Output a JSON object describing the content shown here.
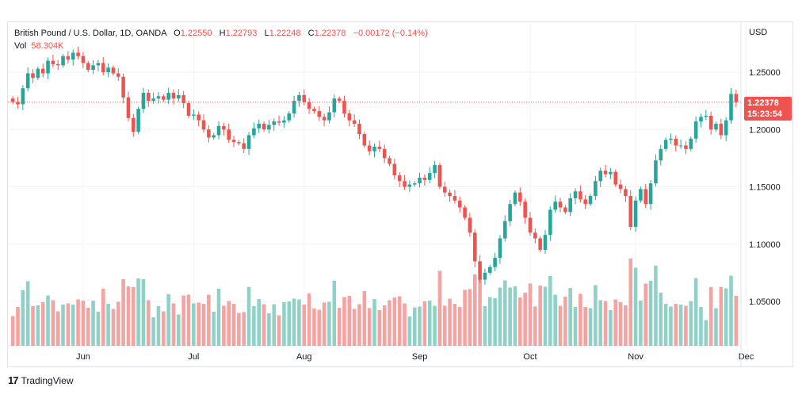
{
  "header": {
    "symbol": "British Pound / U.S. Dollar, 1D, OANDA",
    "open_label": "O",
    "open": "1.22550",
    "high_label": "H",
    "high": "1.22793",
    "low_label": "L",
    "low": "1.22248",
    "close_label": "C",
    "close": "1.22378",
    "change": "−0.00172 (−0.14%)",
    "vol_label": "Vol",
    "vol": "58.304K"
  },
  "currency": "USD",
  "last_price": "1.22378",
  "countdown": "15:23:54",
  "brand": "TradingView",
  "colors": {
    "up": "#26a69a",
    "down": "#ef5350",
    "vol_up": "#8fd1c7",
    "vol_down": "#f5a3a0",
    "grid": "#f0f3fa"
  },
  "chart_data": {
    "type": "candlestick",
    "title": "British Pound / U.S. Dollar, 1D, OANDA",
    "ylim": [
      1.02,
      1.27
    ],
    "y_ticks": [
      1.05,
      1.1,
      1.15,
      1.2,
      1.25
    ],
    "y_tick_labels": [
      "1.05000",
      "1.10000",
      "1.15000",
      "1.20000",
      "1.25000"
    ],
    "x_tick_labels": [
      {
        "label": "Jun",
        "index": 14
      },
      {
        "label": "Jul",
        "index": 36
      },
      {
        "label": "Aug",
        "index": 58
      },
      {
        "label": "Sep",
        "index": 81
      },
      {
        "label": "Oct",
        "index": 103
      },
      {
        "label": "Nov",
        "index": 124
      },
      {
        "label": "Dec",
        "index": 146
      }
    ],
    "series": [
      {
        "close": [
          1.224,
          1.222,
          1.236,
          1.249,
          1.245,
          1.253,
          1.249,
          1.26,
          1.257,
          1.256,
          1.264,
          1.261,
          1.267,
          1.264,
          1.258,
          1.252,
          1.256,
          1.258,
          1.25,
          1.254,
          1.249,
          1.246,
          1.228,
          1.21,
          1.198,
          1.218,
          1.232,
          1.225,
          1.227,
          1.229,
          1.226,
          1.232,
          1.227,
          1.23,
          1.223,
          1.212,
          1.213,
          1.208,
          1.2,
          1.193,
          1.195,
          1.203,
          1.2,
          1.191,
          1.189,
          1.188,
          1.183,
          1.195,
          1.201,
          1.205,
          1.2,
          1.204,
          1.207,
          1.206,
          1.208,
          1.214,
          1.225,
          1.23,
          1.224,
          1.218,
          1.216,
          1.211,
          1.208,
          1.215,
          1.227,
          1.225,
          1.214,
          1.208,
          1.205,
          1.196,
          1.186,
          1.181,
          1.185,
          1.183,
          1.175,
          1.17,
          1.16,
          1.155,
          1.15,
          1.152,
          1.153,
          1.158,
          1.156,
          1.162,
          1.169,
          1.15,
          1.145,
          1.142,
          1.138,
          1.132,
          1.123,
          1.11,
          1.085,
          1.069,
          1.075,
          1.08,
          1.088,
          1.105,
          1.12,
          1.135,
          1.145,
          1.137,
          1.123,
          1.11,
          1.105,
          1.095,
          1.108,
          1.13,
          1.137,
          1.132,
          1.128,
          1.14,
          1.146,
          1.139,
          1.135,
          1.142,
          1.155,
          1.164,
          1.161,
          1.163,
          1.152,
          1.148,
          1.142,
          1.115,
          1.138,
          1.148,
          1.135,
          1.153,
          1.173,
          1.183,
          1.191,
          1.192,
          1.186,
          1.186,
          1.183,
          1.192,
          1.207,
          1.211,
          1.212,
          1.2,
          1.205,
          1.195,
          1.208,
          1.231,
          1.2238
        ]
      }
    ],
    "volume_note": "Vol 58.304K"
  }
}
